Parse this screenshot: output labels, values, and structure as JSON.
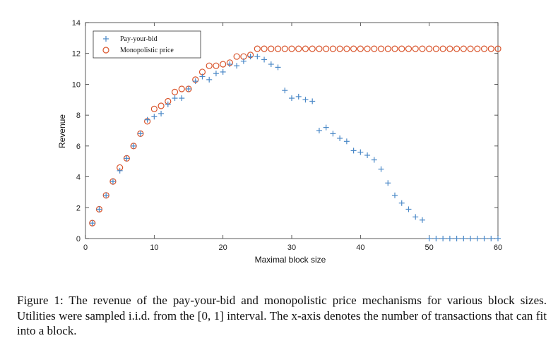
{
  "caption": "Figure 1: The revenue of the pay-your-bid and monopolistic price mechanisms for various block sizes. Utilities were sampled i.i.d. from the [0, 1] interval. The x-axis denotes the number of transactions that can fit into a block.",
  "chart_data": {
    "type": "scatter",
    "xlabel": "Maximal block size",
    "ylabel": "Revenue",
    "xlim": [
      0,
      60
    ],
    "ylim": [
      0,
      14
    ],
    "xticks": [
      0,
      10,
      20,
      30,
      40,
      50,
      60
    ],
    "yticks": [
      0,
      2,
      4,
      6,
      8,
      10,
      12,
      14
    ],
    "grid": false,
    "legend_position": "top-left",
    "series": [
      {
        "name": "Pay-your-bid",
        "marker": "plus",
        "color": "#4a88c7",
        "x": [
          1,
          2,
          3,
          4,
          5,
          6,
          7,
          8,
          9,
          10,
          11,
          12,
          13,
          14,
          15,
          16,
          17,
          18,
          19,
          20,
          21,
          22,
          23,
          24,
          25,
          26,
          27,
          28,
          29,
          30,
          31,
          32,
          33,
          34,
          35,
          36,
          37,
          38,
          39,
          40,
          41,
          42,
          43,
          44,
          45,
          46,
          47,
          48,
          49,
          50,
          51,
          52,
          53,
          54,
          55,
          56,
          57,
          58,
          59,
          60
        ],
        "y": [
          1.0,
          1.9,
          2.8,
          3.7,
          4.4,
          5.2,
          6.0,
          6.8,
          7.7,
          7.9,
          8.1,
          8.7,
          9.1,
          9.1,
          9.7,
          10.2,
          10.5,
          10.3,
          10.7,
          10.8,
          11.3,
          11.2,
          11.5,
          11.8,
          11.8,
          11.6,
          11.3,
          11.1,
          9.6,
          9.1,
          9.2,
          9.0,
          8.9,
          7.0,
          7.2,
          6.8,
          6.5,
          6.3,
          5.7,
          5.6,
          5.4,
          5.1,
          4.5,
          3.6,
          2.8,
          2.3,
          1.9,
          1.4,
          1.2,
          0.0,
          0.0,
          0.0,
          0.0,
          0.0,
          0.0,
          0.0,
          0.0,
          0.0,
          0.0,
          0.0
        ]
      },
      {
        "name": "Monopolistic price",
        "marker": "circle",
        "color": "#d9542b",
        "x": [
          1,
          2,
          3,
          4,
          5,
          6,
          7,
          8,
          9,
          10,
          11,
          12,
          13,
          14,
          15,
          16,
          17,
          18,
          19,
          20,
          21,
          22,
          23,
          24,
          25,
          26,
          27,
          28,
          29,
          30,
          31,
          32,
          33,
          34,
          35,
          36,
          37,
          38,
          39,
          40,
          41,
          42,
          43,
          44,
          45,
          46,
          47,
          48,
          49,
          50,
          51,
          52,
          53,
          54,
          55,
          56,
          57,
          58,
          59,
          60
        ],
        "y": [
          1.0,
          1.9,
          2.8,
          3.7,
          4.6,
          5.2,
          6.0,
          6.8,
          7.6,
          8.4,
          8.6,
          8.9,
          9.5,
          9.7,
          9.7,
          10.3,
          10.8,
          11.2,
          11.2,
          11.3,
          11.4,
          11.8,
          11.8,
          11.9,
          12.3,
          12.3,
          12.3,
          12.3,
          12.3,
          12.3,
          12.3,
          12.3,
          12.3,
          12.3,
          12.3,
          12.3,
          12.3,
          12.3,
          12.3,
          12.3,
          12.3,
          12.3,
          12.3,
          12.3,
          12.3,
          12.3,
          12.3,
          12.3,
          12.3,
          12.3,
          12.3,
          12.3,
          12.3,
          12.3,
          12.3,
          12.3,
          12.3,
          12.3,
          12.3,
          12.3
        ]
      }
    ]
  }
}
